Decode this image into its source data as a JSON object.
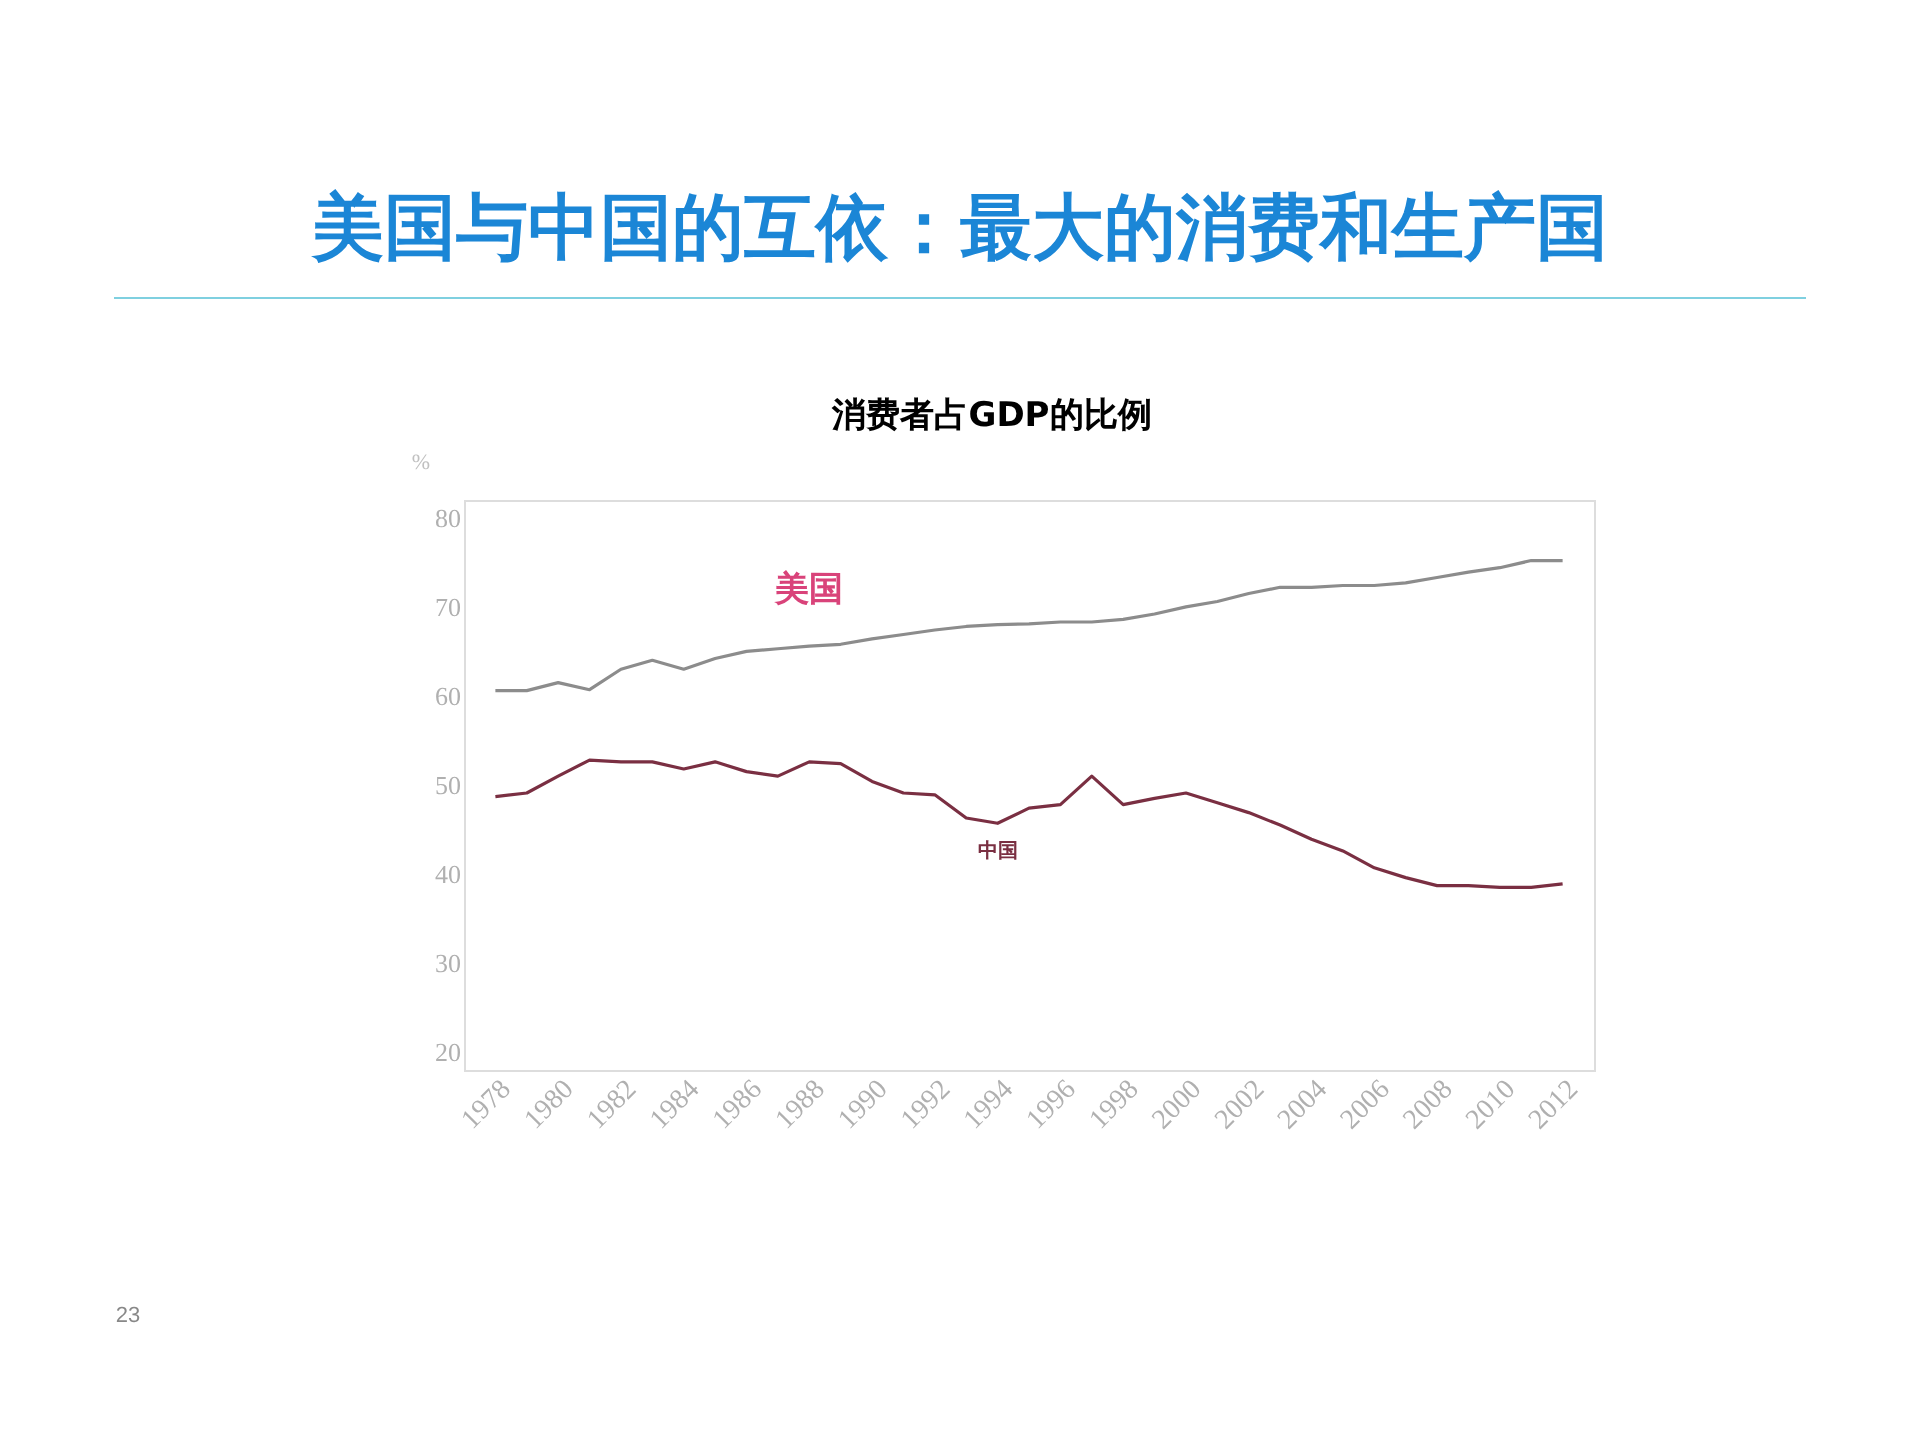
{
  "chart_data": {
    "type": "line",
    "title": "美国与中国的互依：最大的消费和生产国",
    "subtitle": "消费者占GDP的比例",
    "ylabel": "%",
    "x": [
      1978,
      1979,
      1980,
      1981,
      1982,
      1983,
      1984,
      1985,
      1986,
      1987,
      1988,
      1989,
      1990,
      1991,
      1992,
      1993,
      1994,
      1995,
      1996,
      1997,
      1998,
      1999,
      2000,
      2001,
      2002,
      2003,
      2004,
      2005,
      2006,
      2007,
      2008,
      2009,
      2010,
      2011,
      2012
    ],
    "series": [
      {
        "name": "美国",
        "color": "#8c8c8c",
        "values": [
          60.6,
          60.6,
          61.5,
          60.7,
          63,
          64,
          63,
          64.2,
          65,
          65.3,
          65.6,
          65.8,
          66.4,
          66.9,
          67.4,
          67.8,
          68,
          68.1,
          68.3,
          68.3,
          68.6,
          69.2,
          70,
          70.6,
          71.5,
          72.2,
          72.2,
          72.4,
          72.4,
          72.7,
          73.3,
          73.9,
          74.4,
          75.2,
          75.2
        ]
      },
      {
        "name": "中国",
        "color": "#7a2f42",
        "values": [
          48.7,
          49.1,
          51,
          52.8,
          52.6,
          52.6,
          51.8,
          52.6,
          51.5,
          51,
          52.6,
          52.4,
          50.4,
          49.1,
          48.9,
          46.3,
          45.7,
          47.4,
          47.8,
          51,
          47.8,
          48.5,
          49.1,
          48,
          46.9,
          45.5,
          43.9,
          42.6,
          40.7,
          39.6,
          38.7,
          38.7,
          38.5,
          38.5,
          38.9
        ]
      }
    ],
    "xlim": [
      1977,
      2013
    ],
    "xticks": [
      1978,
      1980,
      1982,
      1984,
      1986,
      1988,
      1990,
      1992,
      1994,
      1996,
      1998,
      2000,
      2002,
      2004,
      2006,
      2008,
      2010,
      2012
    ],
    "ylim": [
      18,
      82
    ],
    "yticks": [
      20,
      30,
      40,
      50,
      60,
      70,
      80
    ],
    "grid": false,
    "legend": false,
    "marker": "none",
    "line_style": "solid",
    "annotations": [
      "23"
    ]
  }
}
